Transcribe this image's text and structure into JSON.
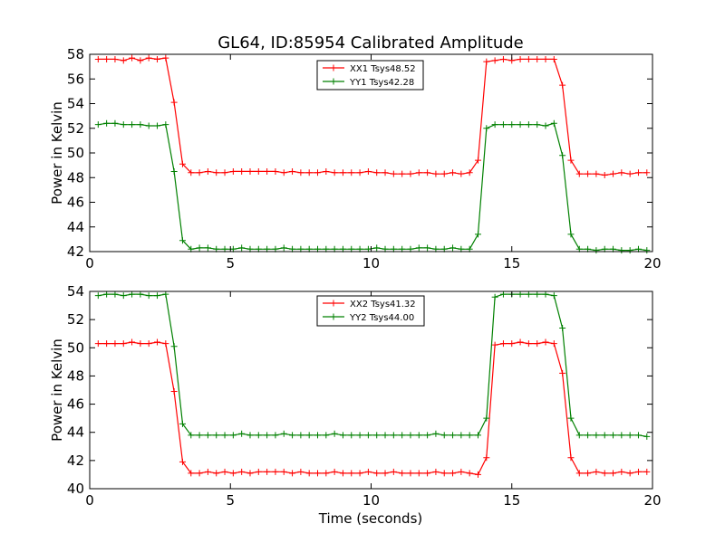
{
  "figure_title": "GL64, ID:85954 Calibrated Amplitude",
  "shared_xlabel": "Time (seconds)",
  "chart_data": [
    {
      "type": "line",
      "title": "GL64, ID:85954 Calibrated Amplitude",
      "xlabel": "",
      "ylabel": "Power in Kelvin",
      "xlim": [
        0,
        20
      ],
      "ylim": [
        42,
        58
      ],
      "xticks": [
        0,
        5,
        10,
        15,
        20
      ],
      "yticks": [
        42,
        44,
        46,
        48,
        50,
        52,
        54,
        56,
        58
      ],
      "grid": false,
      "legend": "top-center",
      "marker": "+",
      "x": [
        0.3,
        0.6,
        0.9,
        1.2,
        1.5,
        1.8,
        2.1,
        2.4,
        2.7,
        3.0,
        3.3,
        3.6,
        3.9,
        4.2,
        4.5,
        4.8,
        5.1,
        5.4,
        5.7,
        6.0,
        6.3,
        6.6,
        6.9,
        7.2,
        7.5,
        7.8,
        8.1,
        8.4,
        8.7,
        9.0,
        9.3,
        9.6,
        9.9,
        10.2,
        10.5,
        10.8,
        11.1,
        11.4,
        11.7,
        12.0,
        12.3,
        12.6,
        12.9,
        13.2,
        13.5,
        13.8,
        14.1,
        14.4,
        14.7,
        15.0,
        15.3,
        15.6,
        15.9,
        16.2,
        16.5,
        16.8,
        17.1,
        17.4,
        17.7,
        18.0,
        18.3,
        18.6,
        18.9,
        19.2,
        19.5,
        19.8
      ],
      "series": [
        {
          "name": "XX1 Tsys48.52",
          "color": "#ff0000",
          "values": [
            57.6,
            57.6,
            57.6,
            57.5,
            57.7,
            57.5,
            57.7,
            57.6,
            57.7,
            54.1,
            49.1,
            48.4,
            48.4,
            48.5,
            48.4,
            48.4,
            48.5,
            48.5,
            48.5,
            48.5,
            48.5,
            48.5,
            48.4,
            48.5,
            48.4,
            48.4,
            48.4,
            48.5,
            48.4,
            48.4,
            48.4,
            48.4,
            48.5,
            48.4,
            48.4,
            48.3,
            48.3,
            48.3,
            48.4,
            48.4,
            48.3,
            48.3,
            48.4,
            48.3,
            48.4,
            49.4,
            57.4,
            57.5,
            57.6,
            57.5,
            57.6,
            57.6,
            57.6,
            57.6,
            57.6,
            55.5,
            49.4,
            48.3,
            48.3,
            48.3,
            48.2,
            48.3,
            48.4,
            48.3,
            48.4,
            48.4
          ]
        },
        {
          "name": "YY1 Tsys42.28",
          "color": "#008000",
          "values": [
            52.3,
            52.4,
            52.4,
            52.3,
            52.3,
            52.3,
            52.2,
            52.2,
            52.3,
            48.5,
            42.9,
            42.2,
            42.3,
            42.3,
            42.2,
            42.2,
            42.2,
            42.3,
            42.2,
            42.2,
            42.2,
            42.2,
            42.3,
            42.2,
            42.2,
            42.2,
            42.2,
            42.2,
            42.2,
            42.2,
            42.2,
            42.2,
            42.2,
            42.3,
            42.2,
            42.2,
            42.2,
            42.2,
            42.3,
            42.3,
            42.2,
            42.2,
            42.3,
            42.2,
            42.2,
            43.4,
            52.0,
            52.3,
            52.3,
            52.3,
            52.3,
            52.3,
            52.3,
            52.2,
            52.4,
            49.8,
            43.4,
            42.2,
            42.2,
            42.1,
            42.2,
            42.2,
            42.1,
            42.1,
            42.2,
            42.1
          ]
        }
      ]
    },
    {
      "type": "line",
      "title": "",
      "xlabel": "Time (seconds)",
      "ylabel": "Power in Kelvin",
      "xlim": [
        0,
        20
      ],
      "ylim": [
        40,
        54
      ],
      "xticks": [
        0,
        5,
        10,
        15,
        20
      ],
      "yticks": [
        40,
        42,
        44,
        46,
        48,
        50,
        52,
        54
      ],
      "grid": false,
      "legend": "top-center",
      "marker": "+",
      "x": [
        0.3,
        0.6,
        0.9,
        1.2,
        1.5,
        1.8,
        2.1,
        2.4,
        2.7,
        3.0,
        3.3,
        3.6,
        3.9,
        4.2,
        4.5,
        4.8,
        5.1,
        5.4,
        5.7,
        6.0,
        6.3,
        6.6,
        6.9,
        7.2,
        7.5,
        7.8,
        8.1,
        8.4,
        8.7,
        9.0,
        9.3,
        9.6,
        9.9,
        10.2,
        10.5,
        10.8,
        11.1,
        11.4,
        11.7,
        12.0,
        12.3,
        12.6,
        12.9,
        13.2,
        13.5,
        13.8,
        14.1,
        14.4,
        14.7,
        15.0,
        15.3,
        15.6,
        15.9,
        16.2,
        16.5,
        16.8,
        17.1,
        17.4,
        17.7,
        18.0,
        18.3,
        18.6,
        18.9,
        19.2,
        19.5,
        19.8
      ],
      "series": [
        {
          "name": "XX2 Tsys41.32",
          "color": "#ff0000",
          "values": [
            50.3,
            50.3,
            50.3,
            50.3,
            50.4,
            50.3,
            50.3,
            50.4,
            50.3,
            46.9,
            41.9,
            41.1,
            41.1,
            41.2,
            41.1,
            41.2,
            41.1,
            41.2,
            41.1,
            41.2,
            41.2,
            41.2,
            41.2,
            41.1,
            41.2,
            41.1,
            41.1,
            41.1,
            41.2,
            41.1,
            41.1,
            41.1,
            41.2,
            41.1,
            41.1,
            41.2,
            41.1,
            41.1,
            41.1,
            41.1,
            41.2,
            41.1,
            41.1,
            41.2,
            41.1,
            41.0,
            42.2,
            50.2,
            50.3,
            50.3,
            50.4,
            50.3,
            50.3,
            50.4,
            50.3,
            48.2,
            42.2,
            41.1,
            41.1,
            41.2,
            41.1,
            41.1,
            41.2,
            41.1,
            41.2,
            41.2
          ]
        },
        {
          "name": "YY2 Tsys44.00",
          "color": "#008000",
          "values": [
            53.7,
            53.8,
            53.8,
            53.7,
            53.8,
            53.8,
            53.7,
            53.7,
            53.8,
            50.1,
            44.6,
            43.8,
            43.8,
            43.8,
            43.8,
            43.8,
            43.8,
            43.9,
            43.8,
            43.8,
            43.8,
            43.8,
            43.9,
            43.8,
            43.8,
            43.8,
            43.8,
            43.8,
            43.9,
            43.8,
            43.8,
            43.8,
            43.8,
            43.8,
            43.8,
            43.8,
            43.8,
            43.8,
            43.8,
            43.8,
            43.9,
            43.8,
            43.8,
            43.8,
            43.8,
            43.8,
            45.0,
            53.6,
            53.8,
            53.8,
            53.8,
            53.8,
            53.8,
            53.8,
            53.7,
            51.4,
            45.0,
            43.8,
            43.8,
            43.8,
            43.8,
            43.8,
            43.8,
            43.8,
            43.8,
            43.7
          ]
        }
      ]
    }
  ]
}
